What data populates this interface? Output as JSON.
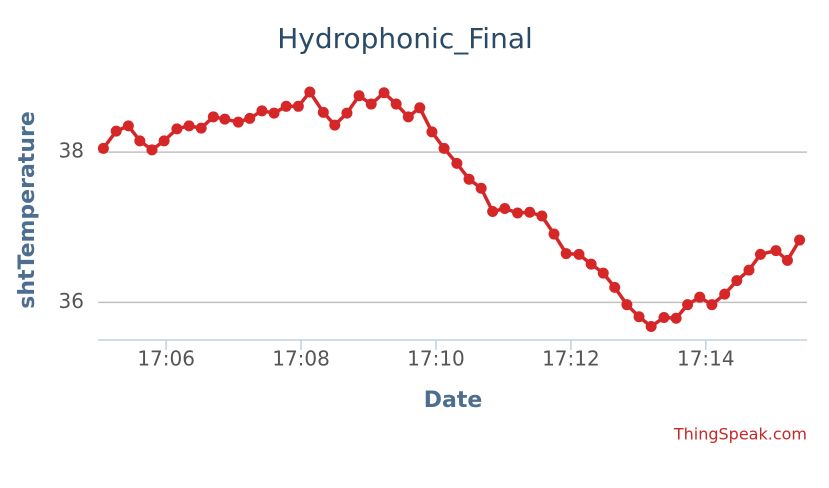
{
  "chart_data": {
    "type": "line",
    "title": "Hydrophonic_Final",
    "x_label": "Date",
    "y_label": "shtTemperature",
    "credit": "ThingSpeak.com",
    "series": [
      {
        "name": "shtTemperature",
        "color": "#d62728",
        "x": [
          5.07,
          5.26,
          5.44,
          5.61,
          5.79,
          5.97,
          6.16,
          6.34,
          6.52,
          6.7,
          6.87,
          7.07,
          7.24,
          7.42,
          7.6,
          7.78,
          7.96,
          8.13,
          8.33,
          8.5,
          8.68,
          8.86,
          9.04,
          9.23,
          9.41,
          9.59,
          9.76,
          9.94,
          10.12,
          10.31,
          10.49,
          10.67,
          10.84,
          11.02,
          11.21,
          11.39,
          11.57,
          11.75,
          11.93,
          12.12,
          12.3,
          12.48,
          12.65,
          12.83,
          13.01,
          13.19,
          13.38,
          13.56,
          13.73,
          13.91,
          14.09,
          14.28,
          14.46,
          14.64,
          14.81,
          15.04,
          15.21,
          15.39
        ],
        "values": [
          38.05,
          38.28,
          38.35,
          38.15,
          38.03,
          38.15,
          38.31,
          38.35,
          38.32,
          38.47,
          38.44,
          38.4,
          38.45,
          38.55,
          38.52,
          38.61,
          38.61,
          38.8,
          38.53,
          38.36,
          38.52,
          38.75,
          38.64,
          38.79,
          38.64,
          38.47,
          38.59,
          38.27,
          38.05,
          37.85,
          37.64,
          37.52,
          37.21,
          37.25,
          37.19,
          37.2,
          37.15,
          36.91,
          36.65,
          36.64,
          36.51,
          36.39,
          36.2,
          35.97,
          35.81,
          35.68,
          35.8,
          35.79,
          35.97,
          36.07,
          35.97,
          36.11,
          36.29,
          36.43,
          36.64,
          36.69,
          36.56,
          36.83
        ]
      }
    ],
    "xlim": [
      4.99,
      15.5
    ],
    "xticks": [
      {
        "value": 6,
        "label": "17:06"
      },
      {
        "value": 8,
        "label": "17:08"
      },
      {
        "value": 10,
        "label": "17:10"
      },
      {
        "value": 12,
        "label": "17:12"
      },
      {
        "value": 14,
        "label": "17:14"
      }
    ],
    "ylim": [
      35.5,
      39
    ],
    "yticks": [
      36,
      38
    ],
    "grid": true
  }
}
